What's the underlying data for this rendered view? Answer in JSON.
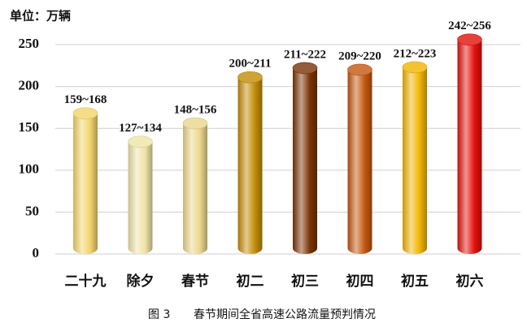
{
  "chart_data": {
    "type": "bar",
    "y_label": "单位：万辆",
    "figure_label": "图 3",
    "title": "春节期间全省高速公路流量预判情况",
    "categories": [
      "二十九",
      "除夕",
      "春节",
      "初二",
      "初三",
      "初四",
      "初五",
      "初六"
    ],
    "values": [
      168,
      134,
      156,
      211,
      222,
      220,
      223,
      256
    ],
    "value_labels": [
      "159~168",
      "127~134",
      "148~156",
      "200~211",
      "211~222",
      "209~220",
      "212~223",
      "242~256"
    ],
    "colors": [
      "#f2d46a",
      "#efe3a6",
      "#ead68a",
      "#c28c08",
      "#7a3306",
      "#c4560f",
      "#f1b400",
      "#e4100a"
    ],
    "ylim": [
      0,
      250
    ],
    "yticks": [
      0,
      50,
      100,
      150,
      200,
      250
    ],
    "grid": true
  }
}
